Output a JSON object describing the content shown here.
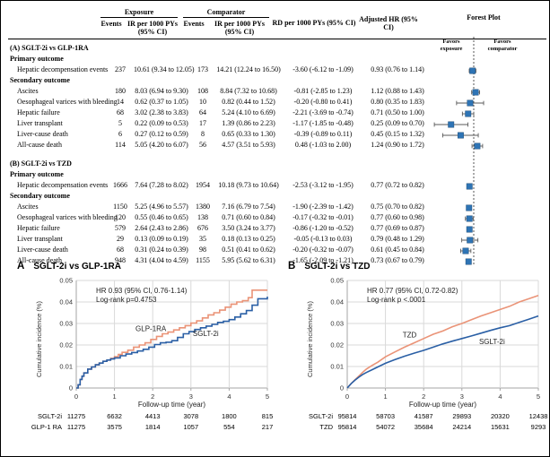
{
  "colors": {
    "forest_marker": "#2E74B5",
    "forest_whisker": "#595959",
    "exposure_line": "#2A5FA5",
    "comparator_line": "#EA9377",
    "grid": "#D9D9D9",
    "axis": "#A6A6A6"
  },
  "table": {
    "headers": {
      "exposure": "Exposure",
      "comparator": "Comparator",
      "events": "Events",
      "ir": "IR per 1000 PYs (95% CI)",
      "rd": "RD per 1000 PYs (95% CI)",
      "hr": "Adjusted HR (95% CI)",
      "forest": "Forest Plot",
      "favors_left": "Favors exposure",
      "favors_right": "Favors comparator"
    },
    "sections": [
      {
        "title": "(A) SGLT-2i vs GLP-1RA",
        "groups": [
          {
            "label": "Primary outcome",
            "rows": [
              {
                "outcome": "Hepatic decompensation events",
                "ev1": "237",
                "ir1": "10.61 (9.34 to 12.05)",
                "ev2": "173",
                "ir2": "14.21 (12.24 to 16.50)",
                "rd": "-3.60 (-6.12 to -1.09)",
                "hr": "0.93 (0.76 to 1.14)",
                "est": [
                  0.93,
                  0.76,
                  1.14
                ]
              }
            ]
          },
          {
            "label": "Secondary outcome",
            "rows": [
              {
                "outcome": "Ascites",
                "ev1": "180",
                "ir1": "8.03 (6.94 to 9.30)",
                "ev2": "108",
                "ir2": "8.84 (7.32 to 10.68)",
                "rd": "-0.81 (-2.85 to 1.23)",
                "hr": "1.12 (0.88 to 1.43)",
                "est": [
                  1.12,
                  0.88,
                  1.43
                ]
              },
              {
                "outcome": "Oesophageal varices with bleeding",
                "ev1": "14",
                "ir1": "0.62 (0.37 to 1.05)",
                "ev2": "10",
                "ir2": "0.82 (0.44 to 1.52)",
                "rd": "-0.20 (-0.80 to 0.41)",
                "hr": "0.80 (0.35 to 1.83)",
                "est": [
                  0.8,
                  0.35,
                  1.83
                ]
              },
              {
                "outcome": "Hepatic failure",
                "ev1": "68",
                "ir1": "3.02 (2.38 to 3.83)",
                "ev2": "64",
                "ir2": "5.24 (4.10 to 6.69)",
                "rd": "-2.21 (-3.69 to -0.74)",
                "hr": "0.71 (0.50 to 1.00)",
                "est": [
                  0.71,
                  0.5,
                  1.0
                ]
              },
              {
                "outcome": "Liver transplant",
                "ev1": "5",
                "ir1": "0.22 (0.09 to 0.53)",
                "ev2": "17",
                "ir2": "1.39 (0.86 to 2.23)",
                "rd": "-1.17 (-1.85 to -0.48)",
                "hr": "0.25 (0.09 to 0.70)",
                "est": [
                  0.25,
                  0.09,
                  0.7
                ]
              },
              {
                "outcome": "Liver-cause death",
                "ev1": "6",
                "ir1": "0.27 (0.12 to 0.59)",
                "ev2": "8",
                "ir2": "0.65 (0.33 to 1.30)",
                "rd": "-0.39 (-0.89 to 0.11)",
                "hr": "0.45 (0.15 to 1.32)",
                "est": [
                  0.45,
                  0.15,
                  1.32
                ]
              },
              {
                "outcome": "All-cause death",
                "ev1": "114",
                "ir1": "5.05 (4.20 to 6.07)",
                "ev2": "56",
                "ir2": "4.57 (3.51 to 5.93)",
                "rd": "0.48 (-1.03 to 2.00)",
                "hr": "1.24 (0.90 to 1.72)",
                "est": [
                  1.24,
                  0.9,
                  1.72
                ]
              }
            ]
          }
        ]
      },
      {
        "title": "(B) SGLT-2i vs TZD",
        "groups": [
          {
            "label": "Primary outcome",
            "rows": [
              {
                "outcome": "Hepatic decompensation events",
                "ev1": "1666",
                "ir1": "7.64 (7.28 to 8.02)",
                "ev2": "1954",
                "ir2": "10.18 (9.73 to 10.64)",
                "rd": "-2.53 (-3.12 to -1.95)",
                "hr": "0.77 (0.72 to 0.82)",
                "est": [
                  0.77,
                  0.72,
                  0.82
                ]
              }
            ]
          },
          {
            "label": "Secondary outcome",
            "rows": [
              {
                "outcome": "Ascites",
                "ev1": "1150",
                "ir1": "5.25 (4.96 to 5.57)",
                "ev2": "1380",
                "ir2": "7.16 (6.79 to 7.54)",
                "rd": "-1.90 (-2.39 to -1.42)",
                "hr": "0.75 (0.70 to 0.82)",
                "est": [
                  0.75,
                  0.7,
                  0.82
                ]
              },
              {
                "outcome": "Oesophageal varices with bleeding",
                "ev1": "120",
                "ir1": "0.55 (0.46 to 0.65)",
                "ev2": "138",
                "ir2": "0.71 (0.60 to 0.84)",
                "rd": "-0.17 (-0.32 to -0.01)",
                "hr": "0.77 (0.60 to 0.98)",
                "est": [
                  0.77,
                  0.6,
                  0.98
                ]
              },
              {
                "outcome": "Hepatic failure",
                "ev1": "579",
                "ir1": "2.64 (2.43 to 2.86)",
                "ev2": "676",
                "ir2": "3.50 (3.24 to 3.77)",
                "rd": "-0.86 (-1.20 to -0.52)",
                "hr": "0.77 (0.69 to 0.87)",
                "est": [
                  0.77,
                  0.69,
                  0.87
                ]
              },
              {
                "outcome": "Liver transplant",
                "ev1": "29",
                "ir1": "0.13 (0.09 to 0.19)",
                "ev2": "35",
                "ir2": "0.18 (0.13 to 0.25)",
                "rd": "-0.05 (-0.13 to 0.03)",
                "hr": "0.79 (0.48 to 1.29)",
                "est": [
                  0.79,
                  0.48,
                  1.29
                ]
              },
              {
                "outcome": "Liver-cause death",
                "ev1": "68",
                "ir1": "0.31 (0.24 to 0.39)",
                "ev2": "98",
                "ir2": "0.51 (0.41 to 0.62)",
                "rd": "-0.20 (-0.32 to -0.07)",
                "hr": "0.61 (0.45 to 0.84)",
                "est": [
                  0.61,
                  0.45,
                  0.84
                ]
              },
              {
                "outcome": "All-cause death",
                "ev1": "948",
                "ir1": "4.31 (4.04 to 4.59)",
                "ev2": "1155",
                "ir2": "5.95 (5.62 to 6.31)",
                "rd": "-1.65 (-2.09 to -1.21)",
                "hr": "0.73 (0.67 to 0.79)",
                "est": [
                  0.73,
                  0.67,
                  0.79
                ]
              }
            ]
          }
        ]
      }
    ]
  },
  "chart_data": [
    {
      "type": "line",
      "panel": "A",
      "title": "SGLT-2i vs GLP-1RA",
      "annotation": [
        "HR 0.93 (95% CI, 0.76-1.14)",
        "Log-rank p=0.4753"
      ],
      "xlabel": "Follow-up time (year)",
      "ylabel": "Cumulative incidence (%)",
      "xlim": [
        0,
        5
      ],
      "ylim": [
        0,
        0.05
      ],
      "xticks": [
        "0",
        "1",
        "2",
        "3",
        "4",
        "5"
      ],
      "yticks": [
        "0",
        "0.01",
        "0.02",
        "0.03",
        "0.04",
        "0.05"
      ],
      "grid": true,
      "step": true,
      "series": [
        {
          "name": "GLP-1RA",
          "color_key": "comparator_line",
          "label_pos": [
            1.55,
            0.0265
          ],
          "points": [
            [
              0,
              0
            ],
            [
              0.05,
              0.0015
            ],
            [
              0.1,
              0.004
            ],
            [
              0.15,
              0.0055
            ],
            [
              0.2,
              0.007
            ],
            [
              0.3,
              0.0088
            ],
            [
              0.4,
              0.0098
            ],
            [
              0.5,
              0.0108
            ],
            [
              0.6,
              0.0116
            ],
            [
              0.7,
              0.0124
            ],
            [
              0.8,
              0.013
            ],
            [
              0.9,
              0.0138
            ],
            [
              1.0,
              0.0146
            ],
            [
              1.1,
              0.0156
            ],
            [
              1.2,
              0.0166
            ],
            [
              1.35,
              0.0176
            ],
            [
              1.5,
              0.019
            ],
            [
              1.65,
              0.02
            ],
            [
              1.8,
              0.021
            ],
            [
              1.95,
              0.0226
            ],
            [
              2.1,
              0.024
            ],
            [
              2.25,
              0.0252
            ],
            [
              2.4,
              0.026
            ],
            [
              2.55,
              0.027
            ],
            [
              2.7,
              0.028
            ],
            [
              2.85,
              0.029
            ],
            [
              3.0,
              0.0302
            ],
            [
              3.15,
              0.0312
            ],
            [
              3.3,
              0.0326
            ],
            [
              3.45,
              0.034
            ],
            [
              3.6,
              0.035
            ],
            [
              3.75,
              0.0362
            ],
            [
              3.9,
              0.0376
            ],
            [
              4.05,
              0.039
            ],
            [
              4.2,
              0.04
            ],
            [
              4.35,
              0.0406
            ],
            [
              4.5,
              0.042
            ],
            [
              4.6,
              0.0455
            ],
            [
              5.0,
              0.0455
            ]
          ]
        },
        {
          "name": "SGLT-2i",
          "color_key": "exposure_line",
          "label_pos": [
            3.05,
            0.0242
          ],
          "points": [
            [
              0,
              0
            ],
            [
              0.05,
              0.0015
            ],
            [
              0.1,
              0.004
            ],
            [
              0.15,
              0.0055
            ],
            [
              0.2,
              0.007
            ],
            [
              0.3,
              0.0088
            ],
            [
              0.4,
              0.0098
            ],
            [
              0.5,
              0.0108
            ],
            [
              0.6,
              0.0116
            ],
            [
              0.7,
              0.0124
            ],
            [
              0.8,
              0.013
            ],
            [
              0.9,
              0.0135
            ],
            [
              1.0,
              0.014
            ],
            [
              1.15,
              0.015
            ],
            [
              1.3,
              0.0158
            ],
            [
              1.45,
              0.0165
            ],
            [
              1.6,
              0.0172
            ],
            [
              1.75,
              0.018
            ],
            [
              1.9,
              0.019
            ],
            [
              2.05,
              0.0202
            ],
            [
              2.2,
              0.021
            ],
            [
              2.35,
              0.0213
            ],
            [
              2.5,
              0.022
            ],
            [
              2.65,
              0.0235
            ],
            [
              2.8,
              0.0252
            ],
            [
              2.95,
              0.0262
            ],
            [
              3.1,
              0.0272
            ],
            [
              3.25,
              0.028
            ],
            [
              3.4,
              0.0288
            ],
            [
              3.55,
              0.0296
            ],
            [
              3.7,
              0.0305
            ],
            [
              3.85,
              0.031
            ],
            [
              4.0,
              0.0318
            ],
            [
              4.15,
              0.033
            ],
            [
              4.3,
              0.0345
            ],
            [
              4.45,
              0.036
            ],
            [
              4.6,
              0.0385
            ],
            [
              4.75,
              0.0415
            ],
            [
              5.0,
              0.0425
            ]
          ]
        }
      ],
      "risk_table": {
        "rows": [
          {
            "label": "SGLT-2i",
            "counts": [
              "11275",
              "6632",
              "4413",
              "3078",
              "1800",
              "815"
            ]
          },
          {
            "label": "GLP-1 RA",
            "counts": [
              "11275",
              "3575",
              "1814",
              "1057",
              "554",
              "217"
            ]
          }
        ]
      }
    },
    {
      "type": "line",
      "panel": "B",
      "title": "SGLT-2i vs TZD",
      "annotation": [
        "HR 0.77 (95% CI, 0.72-0.82)",
        "Log-rank p <.0001"
      ],
      "xlabel": "Follow-up time (year)",
      "ylabel": "Cumulative incidence (%)",
      "xlim": [
        0,
        5
      ],
      "ylim": [
        0,
        0.05
      ],
      "xticks": [
        "0",
        "1",
        "2",
        "3",
        "4",
        "5"
      ],
      "yticks": [
        "0",
        "0.01",
        "0.02",
        "0.03",
        "0.04",
        "0.05"
      ],
      "grid": true,
      "step": false,
      "series": [
        {
          "name": "TZD",
          "color_key": "comparator_line",
          "label_pos": [
            1.45,
            0.0235
          ],
          "points": [
            [
              0,
              0
            ],
            [
              0.1,
              0.002
            ],
            [
              0.2,
              0.0038
            ],
            [
              0.3,
              0.0055
            ],
            [
              0.4,
              0.0072
            ],
            [
              0.5,
              0.0088
            ],
            [
              0.65,
              0.0105
            ],
            [
              0.8,
              0.012
            ],
            [
              1.0,
              0.0145
            ],
            [
              1.25,
              0.0168
            ],
            [
              1.5,
              0.019
            ],
            [
              1.75,
              0.021
            ],
            [
              2.0,
              0.023
            ],
            [
              2.25,
              0.025
            ],
            [
              2.5,
              0.0265
            ],
            [
              2.75,
              0.0285
            ],
            [
              3.0,
              0.03
            ],
            [
              3.25,
              0.0318
            ],
            [
              3.5,
              0.0335
            ],
            [
              3.75,
              0.035
            ],
            [
              4.0,
              0.0365
            ],
            [
              4.25,
              0.038
            ],
            [
              4.5,
              0.04
            ],
            [
              4.75,
              0.0415
            ],
            [
              5.0,
              0.043
            ]
          ]
        },
        {
          "name": "SGLT-2i",
          "color_key": "exposure_line",
          "label_pos": [
            3.45,
            0.0205
          ],
          "points": [
            [
              0,
              0
            ],
            [
              0.1,
              0.002
            ],
            [
              0.2,
              0.0036
            ],
            [
              0.3,
              0.005
            ],
            [
              0.4,
              0.0062
            ],
            [
              0.5,
              0.0072
            ],
            [
              0.65,
              0.0085
            ],
            [
              0.8,
              0.0098
            ],
            [
              1.0,
              0.0115
            ],
            [
              1.25,
              0.0132
            ],
            [
              1.5,
              0.0148
            ],
            [
              1.75,
              0.0162
            ],
            [
              2.0,
              0.0175
            ],
            [
              2.25,
              0.019
            ],
            [
              2.5,
              0.0205
            ],
            [
              2.75,
              0.0218
            ],
            [
              3.0,
              0.023
            ],
            [
              3.25,
              0.0242
            ],
            [
              3.5,
              0.0255
            ],
            [
              3.75,
              0.0268
            ],
            [
              4.0,
              0.028
            ],
            [
              4.25,
              0.029
            ],
            [
              4.5,
              0.0305
            ],
            [
              4.75,
              0.032
            ],
            [
              5.0,
              0.0335
            ]
          ]
        }
      ],
      "risk_table": {
        "rows": [
          {
            "label": "SGLT-2i",
            "counts": [
              "95814",
              "58703",
              "41587",
              "29893",
              "20320",
              "12438"
            ]
          },
          {
            "label": "TZD",
            "counts": [
              "95814",
              "54072",
              "35684",
              "24214",
              "15631",
              "9293"
            ]
          }
        ]
      }
    }
  ]
}
